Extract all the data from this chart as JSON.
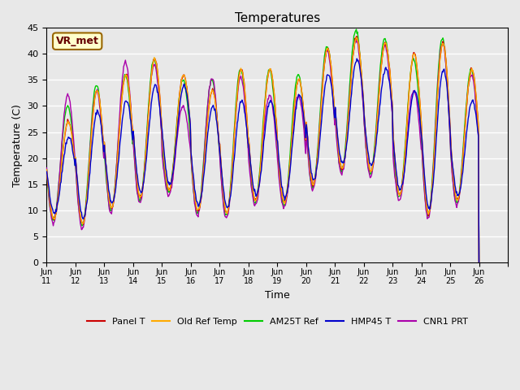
{
  "title": "Temperatures",
  "xlabel": "Time",
  "ylabel": "Temperature (C)",
  "annotation": "VR_met",
  "ylim": [
    0,
    45
  ],
  "background_color": "#e8e8e8",
  "grid_color": "#ffffff",
  "series_colors": [
    "#cc0000",
    "#ffaa00",
    "#00cc00",
    "#0000cc",
    "#aa00aa"
  ],
  "series_labels": [
    "Panel T",
    "Old Ref Temp",
    "AM25T Ref",
    "HMP45 T",
    "CNR1 PRT"
  ],
  "n_days": 15,
  "points_per_day": 48,
  "daily_min_base": [
    8.5,
    7.5,
    10.5,
    12.5,
    14,
    10,
    9.5,
    12,
    11.5,
    15,
    18,
    17.5,
    13,
    9.5,
    12
  ],
  "daily_max_panel": [
    27,
    33,
    36,
    39,
    36,
    33,
    37,
    37,
    35,
    41,
    43,
    42,
    40,
    42,
    37
  ],
  "daily_max_am25t": [
    30,
    34,
    36,
    39,
    35,
    35,
    37,
    37,
    36,
    41.5,
    44.5,
    43,
    39,
    43,
    37
  ],
  "daily_max_hmp45": [
    24,
    29,
    31,
    34,
    34,
    30,
    31,
    31,
    32,
    36,
    39,
    37,
    33,
    37,
    31
  ],
  "daily_max_cnr1": [
    32,
    33,
    38.5,
    38,
    30,
    35.5,
    35.5,
    32,
    32,
    40.5,
    42.5,
    41.5,
    33,
    42,
    36
  ],
  "x_tick_positions": [
    10,
    11,
    12,
    13,
    14,
    15,
    16,
    17,
    18,
    19,
    20,
    21,
    22,
    23,
    24,
    25,
    26
  ],
  "x_tick_labels": [
    "Jun 11",
    "Jun 12",
    "Jun 13",
    "Jun 14",
    "Jun 15",
    "Jun 16",
    "Jun 17",
    "Jun 18",
    "Jun 19",
    "Jun 20",
    "Jun 21",
    "Jun 22",
    "Jun 23",
    "Jun 24",
    "Jun 25",
    "Jun 26",
    ""
  ]
}
